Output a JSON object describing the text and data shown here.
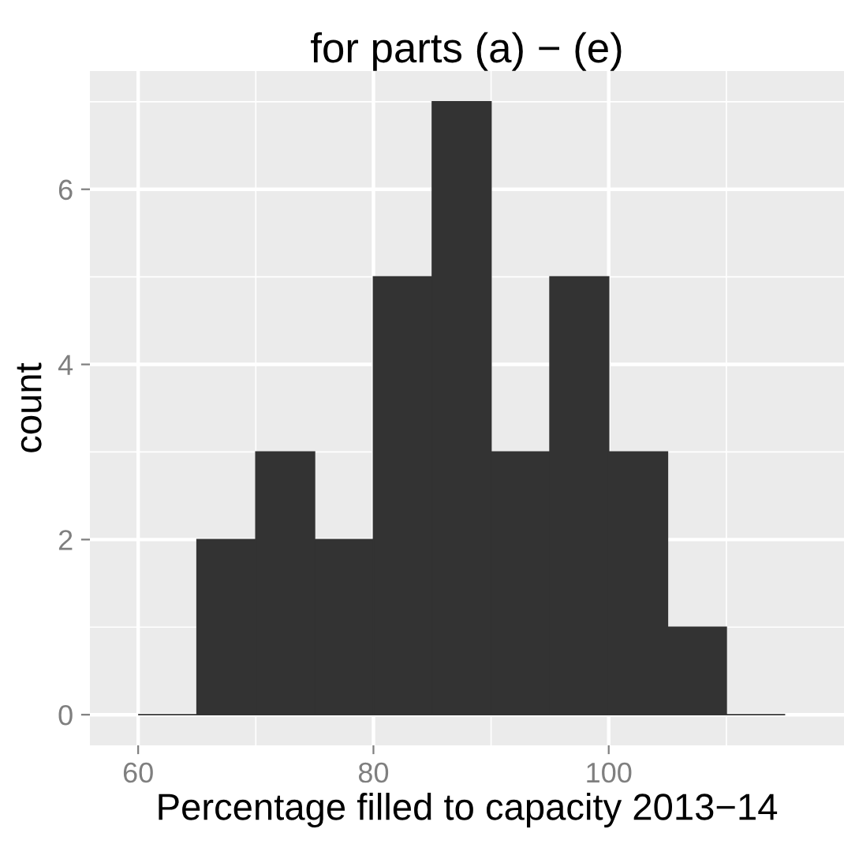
{
  "chart_data": {
    "type": "histogram",
    "title": "for parts (a) − (e)",
    "xlabel": "Percentage filled to capacity 2013−14",
    "ylabel": "count",
    "bins": [
      60,
      65,
      70,
      75,
      80,
      85,
      90,
      95,
      100,
      105,
      110,
      115
    ],
    "values": [
      0,
      2,
      3,
      2,
      5,
      7,
      3,
      5,
      3,
      1,
      0
    ],
    "color": "#333333",
    "xlim": [
      55.9,
      120
    ],
    "xticks": [
      60,
      80,
      100
    ],
    "ylim": [
      -0.35,
      7.35
    ],
    "yticks": [
      0,
      2,
      4,
      6
    ],
    "grid": true
  }
}
